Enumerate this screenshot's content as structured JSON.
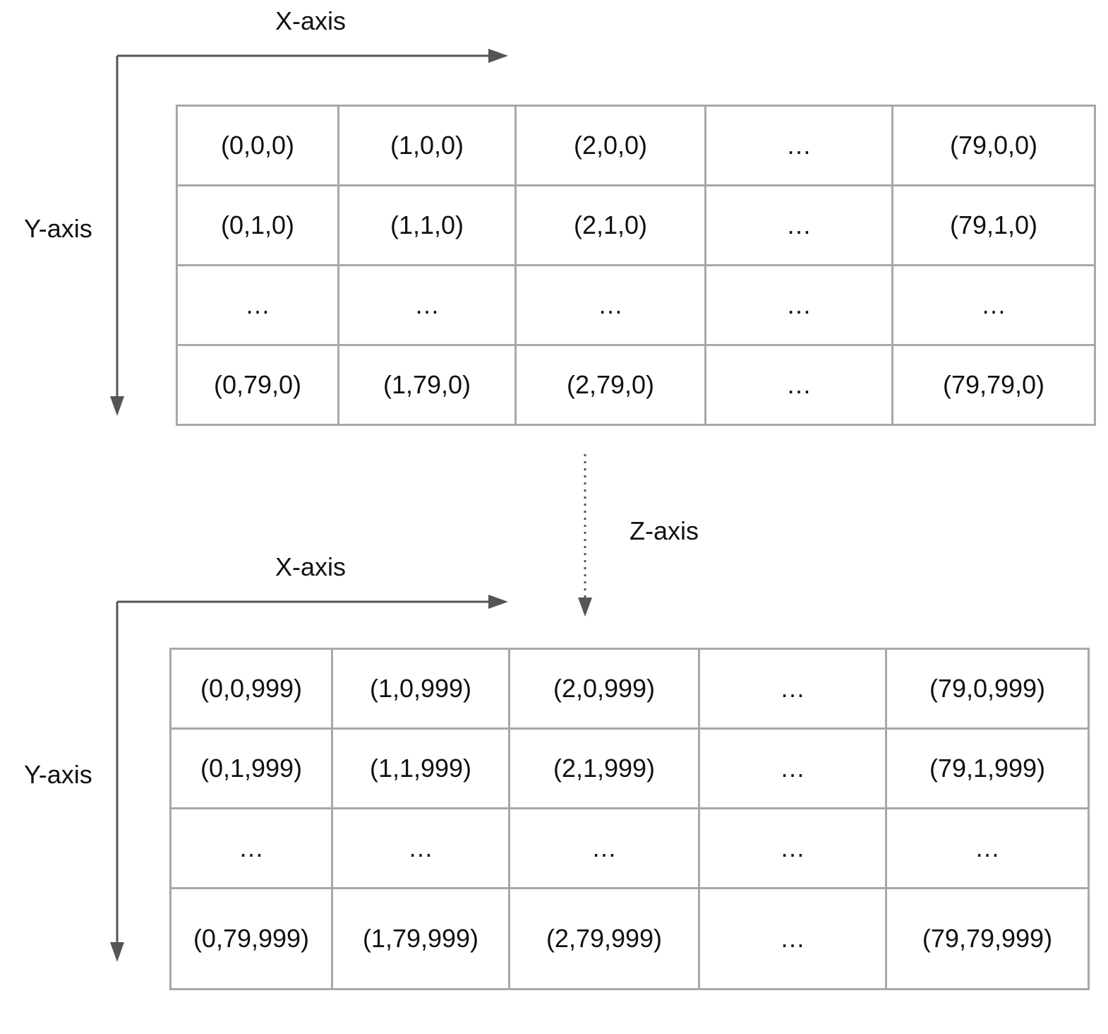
{
  "top_plane": {
    "x_axis_label": "X-axis",
    "y_axis_label": "Y-axis",
    "rows": [
      [
        "(0,0,0)",
        "(1,0,0)",
        "(2,0,0)",
        "…",
        "(79,0,0)"
      ],
      [
        "(0,1,0)",
        "(1,1,0)",
        "(2,1,0)",
        "…",
        "(79,1,0)"
      ],
      [
        "…",
        "…",
        "…",
        "…",
        "…"
      ],
      [
        "(0,79,0)",
        "(1,79,0)",
        "(2,79,0)",
        "…",
        "(79,79,0)"
      ]
    ]
  },
  "z_axis_label": "Z-axis",
  "bottom_plane": {
    "x_axis_label": "X-axis",
    "y_axis_label": "Y-axis",
    "rows": [
      [
        "(0,0,999)",
        "(1,0,999)",
        "(2,0,999)",
        "…",
        "(79,0,999)"
      ],
      [
        "(0,1,999)",
        "(1,1,999)",
        "(2,1,999)",
        "…",
        "(79,1,999)"
      ],
      [
        "…",
        "…",
        "…",
        "…",
        "…"
      ],
      [
        "(0,79,999)",
        "(1,79,999)",
        "(2,79,999)",
        "…",
        "(79,79,999)"
      ]
    ]
  },
  "colors": {
    "arrow": "#555555",
    "grid_border": "#a8a8a8"
  }
}
